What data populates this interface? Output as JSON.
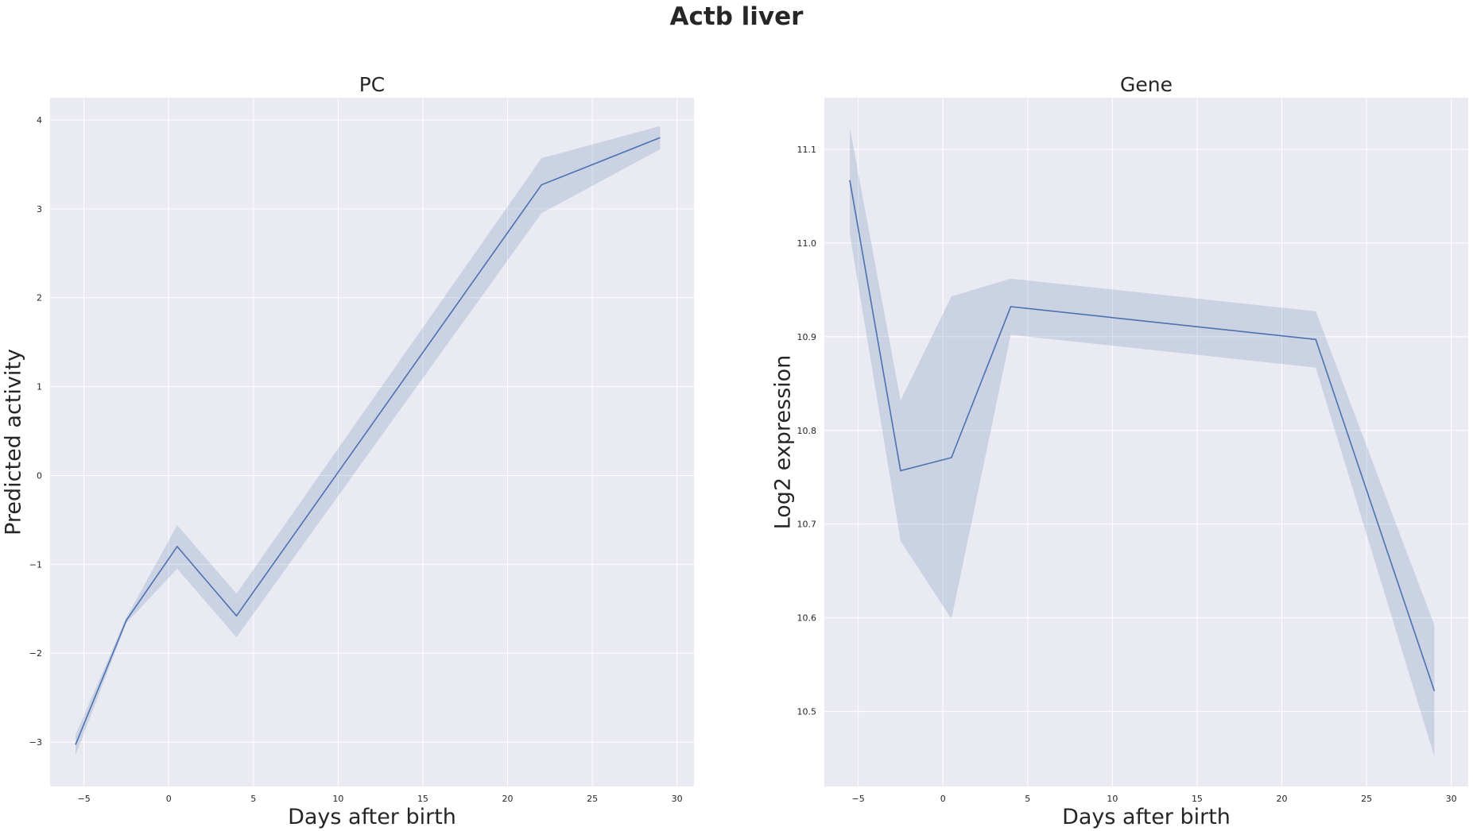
{
  "suptitle": "Actb liver",
  "chart_data": [
    {
      "type": "line",
      "title": "PC",
      "xlabel": "Days after birth",
      "ylabel": "Predicted activity",
      "xlim": [
        -7,
        31
      ],
      "ylim": [
        -3.5,
        4.25
      ],
      "xticks": [
        -5,
        0,
        5,
        10,
        15,
        20,
        25,
        30
      ],
      "xtick_labels": [
        "−5",
        "0",
        "5",
        "10",
        "15",
        "20",
        "25",
        "30"
      ],
      "yticks": [
        -3,
        -2,
        -1,
        0,
        1,
        2,
        3,
        4
      ],
      "ytick_labels": [
        "−3",
        "−2",
        "−1",
        "0",
        "1",
        "2",
        "3",
        "4"
      ],
      "grid": true,
      "line_color": "#4c72b0",
      "band_color": "#4c72b0",
      "x": [
        -5.5,
        -2.5,
        0.5,
        4,
        22,
        29
      ],
      "y": [
        -3.03,
        -1.63,
        -0.8,
        -1.58,
        3.27,
        3.8
      ],
      "ci_lower": [
        -3.15,
        -1.66,
        -1.05,
        -1.82,
        2.95,
        3.67
      ],
      "ci_upper": [
        -2.92,
        -1.6,
        -0.56,
        -1.33,
        3.57,
        3.93
      ]
    },
    {
      "type": "line",
      "title": "Gene",
      "xlabel": "Days after birth",
      "ylabel": "Log2 expression",
      "xlim": [
        -7,
        31
      ],
      "ylim": [
        10.42,
        11.155
      ],
      "xticks": [
        -5,
        0,
        5,
        10,
        15,
        20,
        25,
        30
      ],
      "xtick_labels": [
        "−5",
        "0",
        "5",
        "10",
        "15",
        "20",
        "25",
        "30"
      ],
      "yticks": [
        10.5,
        10.6,
        10.7,
        10.8,
        10.9,
        11.0,
        11.1
      ],
      "ytick_labels": [
        "10.5",
        "10.6",
        "10.7",
        "10.8",
        "10.9",
        "11.0",
        "11.1"
      ],
      "grid": true,
      "line_color": "#4c72b0",
      "band_color": "#4c72b0",
      "x": [
        -5.5,
        -2.5,
        0.5,
        4,
        22,
        29
      ],
      "y": [
        11.067,
        10.757,
        10.771,
        10.932,
        10.897,
        10.522
      ],
      "ci_lower": [
        11.01,
        10.682,
        10.599,
        10.902,
        10.867,
        10.452
      ],
      "ci_upper": [
        11.123,
        10.832,
        10.943,
        10.962,
        10.927,
        10.592
      ]
    }
  ]
}
